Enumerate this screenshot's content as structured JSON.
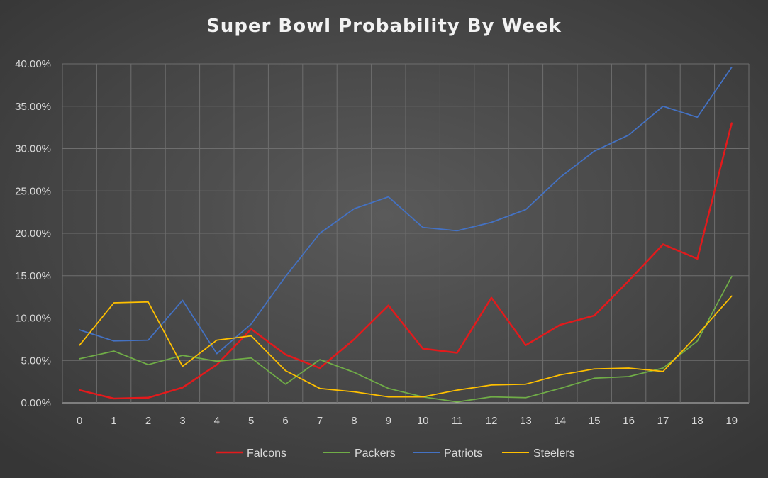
{
  "chart_data": {
    "type": "line",
    "title": "Super Bowl Probability By Week",
    "xlabel": "",
    "ylabel": "",
    "x": [
      0,
      1,
      2,
      3,
      4,
      5,
      6,
      7,
      8,
      9,
      10,
      11,
      12,
      13,
      14,
      15,
      16,
      17,
      18,
      19
    ],
    "ylim": [
      0,
      0.4
    ],
    "ytick_values": [
      0,
      0.05,
      0.1,
      0.15,
      0.2,
      0.25,
      0.3,
      0.35,
      0.4
    ],
    "ytick_labels": [
      "0.00%",
      "5.00%",
      "10.00%",
      "15.00%",
      "20.00%",
      "25.00%",
      "30.00%",
      "35.00%",
      "40.00%"
    ],
    "grid": true,
    "legend_position": "bottom",
    "series": [
      {
        "name": "Falcons",
        "color": "#e31a1c",
        "values": [
          0.015,
          0.005,
          0.006,
          0.018,
          0.045,
          0.087,
          0.057,
          0.041,
          0.075,
          0.115,
          0.064,
          0.059,
          0.124,
          0.068,
          0.092,
          0.103,
          0.144,
          0.187,
          0.17,
          0.33
        ]
      },
      {
        "name": "Packers",
        "color": "#70ad47",
        "values": [
          0.052,
          0.061,
          0.045,
          0.056,
          0.049,
          0.053,
          0.022,
          0.051,
          0.036,
          0.017,
          0.007,
          0.001,
          0.007,
          0.006,
          0.017,
          0.029,
          0.031,
          0.041,
          0.073,
          0.149
        ]
      },
      {
        "name": "Patriots",
        "color": "#4472c4",
        "values": [
          0.086,
          0.073,
          0.074,
          0.121,
          0.058,
          0.093,
          0.149,
          0.2,
          0.229,
          0.243,
          0.207,
          0.203,
          0.213,
          0.228,
          0.266,
          0.297,
          0.316,
          0.35,
          0.337,
          0.396
        ]
      },
      {
        "name": "Steelers",
        "color": "#ffc000",
        "values": [
          0.068,
          0.118,
          0.119,
          0.043,
          0.074,
          0.079,
          0.038,
          0.017,
          0.013,
          0.007,
          0.007,
          0.015,
          0.021,
          0.022,
          0.033,
          0.04,
          0.041,
          0.037,
          0.08,
          0.126
        ]
      }
    ]
  }
}
